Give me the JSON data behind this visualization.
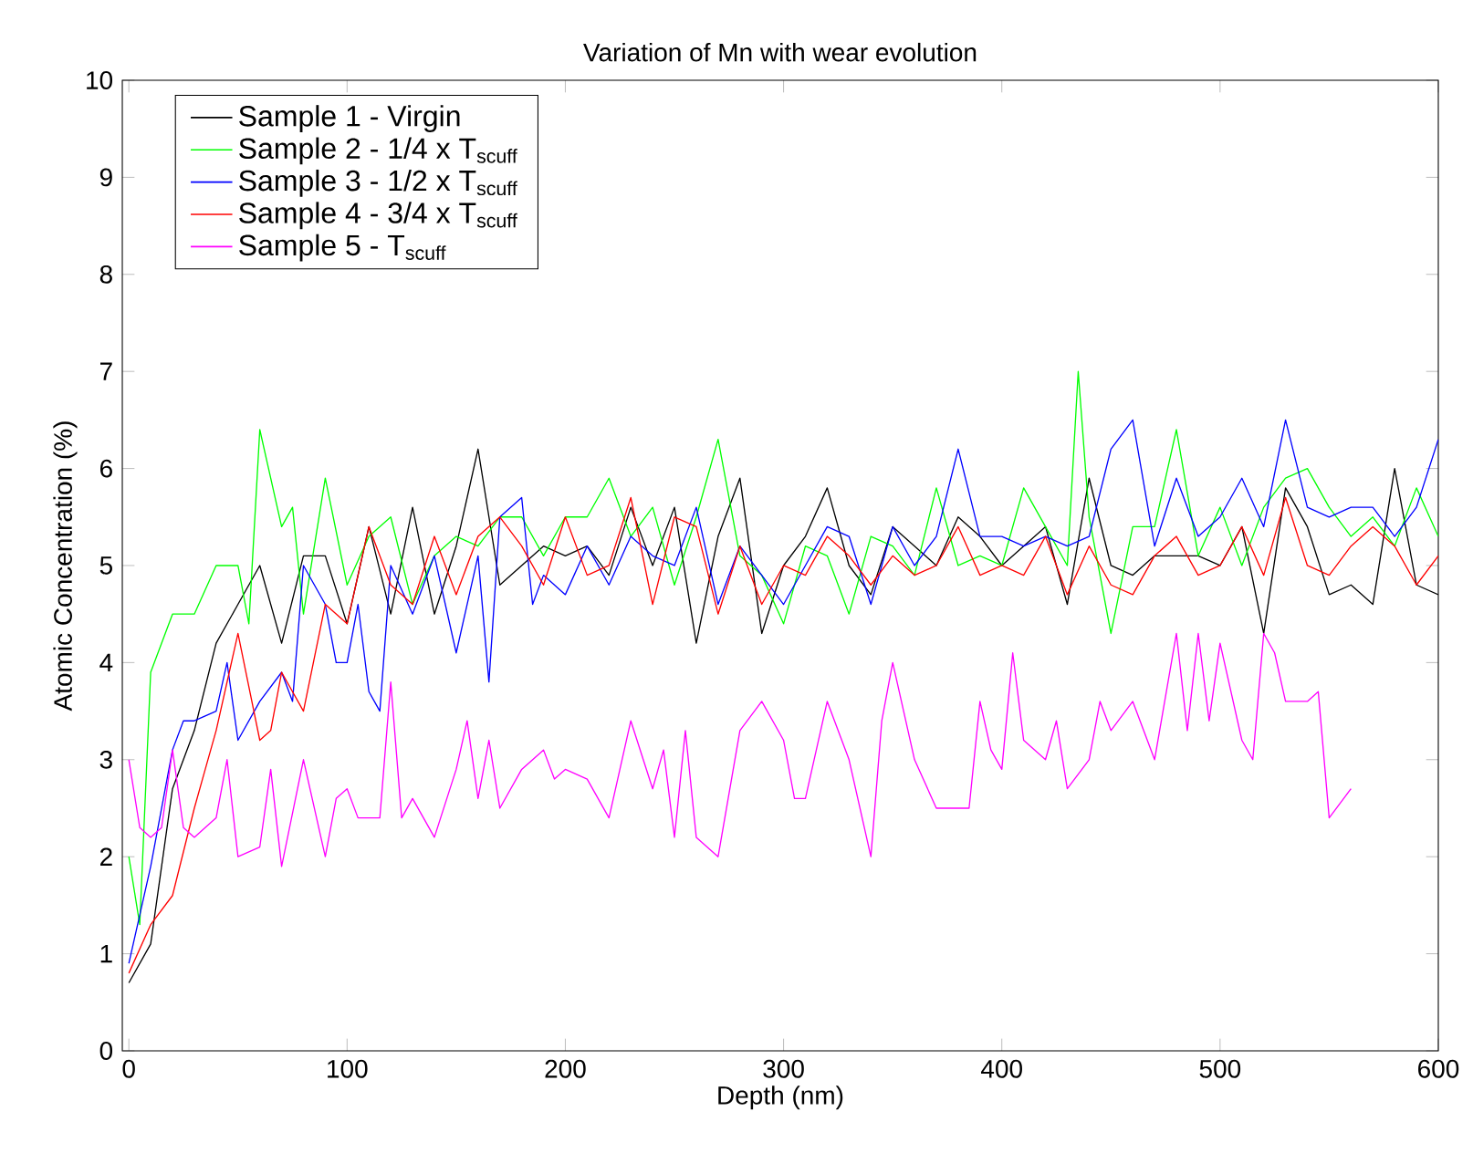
{
  "chart_data": {
    "type": "line",
    "title": "Variation of Mn with wear evolution",
    "xlabel": "Depth (nm)",
    "ylabel": "Atomic Concentration (%)",
    "xlim": [
      -3,
      600
    ],
    "ylim": [
      0,
      10
    ],
    "xticks": [
      0,
      100,
      200,
      300,
      400,
      500,
      600
    ],
    "yticks": [
      0,
      1,
      2,
      3,
      4,
      5,
      6,
      7,
      8,
      9,
      10
    ],
    "legend": "top left",
    "line_style": "solid",
    "series": [
      {
        "name": "Sample 1 - Virgin",
        "color": "#000000",
        "x": [
          0,
          10,
          20,
          30,
          40,
          50,
          60,
          70,
          80,
          90,
          100,
          110,
          120,
          130,
          140,
          150,
          160,
          170,
          180,
          190,
          200,
          210,
          220,
          230,
          240,
          250,
          260,
          270,
          280,
          290,
          300,
          310,
          320,
          330,
          340,
          350,
          360,
          370,
          380,
          390,
          400,
          410,
          420,
          430,
          440,
          450,
          460,
          470,
          480,
          490,
          500,
          510,
          520,
          530,
          540,
          550,
          560,
          570,
          580,
          590,
          600
        ],
        "values": [
          0.7,
          1.1,
          2.7,
          3.3,
          4.2,
          4.6,
          5.0,
          4.2,
          5.1,
          5.1,
          4.4,
          5.4,
          4.5,
          5.6,
          4.5,
          5.2,
          6.2,
          4.8,
          5.0,
          5.2,
          5.1,
          5.2,
          4.9,
          5.6,
          5.0,
          5.6,
          4.2,
          5.3,
          5.9,
          4.3,
          5.0,
          5.3,
          5.8,
          5.0,
          4.7,
          5.4,
          5.2,
          5.0,
          5.5,
          5.3,
          5.0,
          5.2,
          5.4,
          4.6,
          5.9,
          5.0,
          4.9,
          5.1,
          5.1,
          5.1,
          5.0,
          5.4,
          4.3,
          5.8,
          5.4,
          4.7,
          4.8,
          4.6,
          6.0,
          4.8,
          4.7
        ]
      },
      {
        "name": "Sample 2 - 1/4 x T$_{scuff}$",
        "color": "#00ff00",
        "x": [
          0,
          5,
          10,
          20,
          30,
          40,
          50,
          55,
          60,
          70,
          75,
          80,
          90,
          100,
          110,
          120,
          130,
          140,
          150,
          160,
          170,
          180,
          190,
          200,
          210,
          220,
          230,
          240,
          250,
          260,
          270,
          280,
          290,
          300,
          310,
          320,
          330,
          340,
          350,
          360,
          370,
          380,
          390,
          400,
          410,
          420,
          430,
          435,
          440,
          450,
          460,
          470,
          480,
          490,
          500,
          510,
          520,
          530,
          540,
          550,
          560,
          570,
          580,
          590,
          600
        ],
        "values": [
          2.0,
          1.3,
          3.9,
          4.5,
          4.5,
          5.0,
          5.0,
          4.4,
          6.4,
          5.4,
          5.6,
          4.5,
          5.9,
          4.8,
          5.3,
          5.5,
          4.6,
          5.1,
          5.3,
          5.2,
          5.5,
          5.5,
          5.1,
          5.5,
          5.5,
          5.9,
          5.3,
          5.6,
          4.8,
          5.5,
          6.3,
          5.1,
          4.9,
          4.4,
          5.2,
          5.1,
          4.5,
          5.3,
          5.2,
          4.9,
          5.8,
          5.0,
          5.1,
          5.0,
          5.8,
          5.4,
          5.0,
          7.0,
          5.5,
          4.3,
          5.4,
          5.4,
          6.4,
          5.1,
          5.6,
          5.0,
          5.6,
          5.9,
          6.0,
          5.6,
          5.3,
          5.5,
          5.2,
          5.8,
          5.3
        ]
      },
      {
        "name": "Sample 3 - 1/2 x T$_{scuff}$",
        "color": "#0000ff",
        "x": [
          0,
          10,
          20,
          25,
          30,
          40,
          45,
          50,
          60,
          70,
          75,
          80,
          90,
          95,
          100,
          105,
          110,
          115,
          120,
          130,
          140,
          150,
          160,
          165,
          170,
          180,
          185,
          190,
          200,
          210,
          220,
          230,
          240,
          250,
          260,
          270,
          280,
          290,
          300,
          310,
          320,
          330,
          340,
          350,
          360,
          370,
          380,
          390,
          400,
          410,
          420,
          430,
          440,
          450,
          460,
          470,
          480,
          490,
          500,
          510,
          520,
          530,
          540,
          550,
          560,
          570,
          580,
          590,
          600
        ],
        "values": [
          0.9,
          1.9,
          3.1,
          3.4,
          3.4,
          3.5,
          4.0,
          3.2,
          3.6,
          3.9,
          3.6,
          5.0,
          4.6,
          4.0,
          4.0,
          4.6,
          3.7,
          3.5,
          5.0,
          4.5,
          5.1,
          4.1,
          5.1,
          3.8,
          5.5,
          5.7,
          4.6,
          4.9,
          4.7,
          5.2,
          4.8,
          5.3,
          5.1,
          5.0,
          5.6,
          4.6,
          5.2,
          4.9,
          4.6,
          5.0,
          5.4,
          5.3,
          4.6,
          5.4,
          5.0,
          5.3,
          6.2,
          5.3,
          5.3,
          5.2,
          5.3,
          5.2,
          5.3,
          6.2,
          6.5,
          5.2,
          5.9,
          5.3,
          5.5,
          5.9,
          5.4,
          6.5,
          5.6,
          5.5,
          5.6,
          5.6,
          5.3,
          5.6,
          6.3
        ]
      },
      {
        "name": "Sample 4 - 3/4 x T$_{scuff}$",
        "color": "#ff0000",
        "x": [
          0,
          10,
          20,
          30,
          35,
          40,
          50,
          60,
          65,
          70,
          80,
          90,
          100,
          110,
          120,
          130,
          140,
          150,
          160,
          170,
          180,
          190,
          200,
          210,
          220,
          230,
          240,
          250,
          260,
          270,
          280,
          290,
          300,
          310,
          320,
          330,
          340,
          350,
          360,
          370,
          380,
          390,
          400,
          410,
          420,
          430,
          440,
          450,
          460,
          470,
          480,
          490,
          500,
          510,
          520,
          530,
          540,
          550,
          560,
          570,
          580,
          590,
          600
        ],
        "values": [
          0.8,
          1.3,
          1.6,
          2.5,
          2.9,
          3.3,
          4.3,
          3.2,
          3.3,
          3.9,
          3.5,
          4.6,
          4.4,
          5.4,
          4.8,
          4.6,
          5.3,
          4.7,
          5.3,
          5.5,
          5.2,
          4.8,
          5.5,
          4.9,
          5.0,
          5.7,
          4.6,
          5.5,
          5.4,
          4.5,
          5.2,
          4.6,
          5.0,
          4.9,
          5.3,
          5.1,
          4.8,
          5.1,
          4.9,
          5.0,
          5.4,
          4.9,
          5.0,
          4.9,
          5.3,
          4.7,
          5.2,
          4.8,
          4.7,
          5.1,
          5.3,
          4.9,
          5.0,
          5.4,
          4.9,
          5.7,
          5.0,
          4.9,
          5.2,
          5.4,
          5.2,
          4.8,
          5.1
        ]
      },
      {
        "name": "Sample 5 - T$_{scuff}$",
        "color": "#ff00ff",
        "x": [
          0,
          5,
          10,
          15,
          20,
          25,
          30,
          40,
          45,
          50,
          60,
          65,
          70,
          80,
          90,
          95,
          100,
          105,
          110,
          115,
          120,
          125,
          130,
          140,
          150,
          155,
          160,
          165,
          170,
          180,
          190,
          195,
          200,
          210,
          220,
          225,
          230,
          240,
          245,
          250,
          255,
          260,
          270,
          280,
          290,
          300,
          305,
          310,
          320,
          330,
          340,
          345,
          350,
          360,
          370,
          380,
          385,
          390,
          395,
          400,
          405,
          410,
          420,
          425,
          430,
          440,
          445,
          450,
          460,
          465,
          470,
          480,
          485,
          490,
          495,
          500,
          510,
          515,
          520,
          525,
          530,
          540,
          545,
          550,
          560
        ],
        "values": [
          3.0,
          2.3,
          2.2,
          2.3,
          3.1,
          2.3,
          2.2,
          2.4,
          3.0,
          2.0,
          2.1,
          2.9,
          1.9,
          3.0,
          2.0,
          2.6,
          2.7,
          2.4,
          2.4,
          2.4,
          3.8,
          2.4,
          2.6,
          2.2,
          2.9,
          3.4,
          2.6,
          3.2,
          2.5,
          2.9,
          3.1,
          2.8,
          2.9,
          2.8,
          2.4,
          2.9,
          3.4,
          2.7,
          3.1,
          2.2,
          3.3,
          2.2,
          2.0,
          3.3,
          3.6,
          3.2,
          2.6,
          2.6,
          3.6,
          3.0,
          2.0,
          3.4,
          4.0,
          3.0,
          2.5,
          2.5,
          2.5,
          3.6,
          3.1,
          2.9,
          4.1,
          3.2,
          3.0,
          3.4,
          2.7,
          3.0,
          3.6,
          3.3,
          3.6,
          3.3,
          3.0,
          4.3,
          3.3,
          4.3,
          3.4,
          4.2,
          3.2,
          3.0,
          4.3,
          4.1,
          3.6,
          3.6,
          3.7,
          2.4,
          2.7
        ]
      }
    ]
  }
}
